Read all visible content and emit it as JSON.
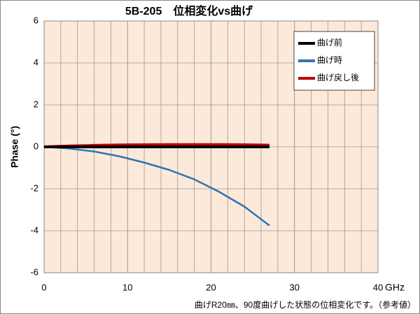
{
  "chart_data": {
    "type": "line",
    "title": "5B-205　位相変化vs曲げ",
    "x_label": "GHz",
    "y_label": "Phase (°)",
    "note": "曲げR20㎜、90度曲げした状態の位相変化です。（参考値）",
    "x": [
      0,
      3,
      6,
      9,
      12,
      15,
      18,
      21,
      24,
      27
    ],
    "series": [
      {
        "name": "曲げ前",
        "color": "#000000",
        "values": [
          0,
          0,
          0,
          0,
          0,
          0,
          0,
          0,
          0,
          0
        ]
      },
      {
        "name": "曲げ時",
        "color": "#2e75b6",
        "values": [
          0,
          -0.08,
          -0.22,
          -0.45,
          -0.75,
          -1.1,
          -1.55,
          -2.15,
          -2.85,
          -3.75
        ]
      },
      {
        "name": "曲げ戻し後",
        "color": "#c00000",
        "values": [
          0,
          0.04,
          0.07,
          0.09,
          0.1,
          0.11,
          0.11,
          0.11,
          0.1,
          0.08
        ]
      }
    ],
    "xlim": [
      0,
      40
    ],
    "xticks": [
      0,
      10,
      20,
      30,
      40
    ],
    "minor_x_grid_step": 2,
    "ylim": [
      -6,
      6
    ],
    "yticks": [
      -6,
      -4,
      -2,
      0,
      2,
      4,
      6
    ],
    "grid": true,
    "plot_background": "#fde9d9",
    "legend": "upper right"
  }
}
